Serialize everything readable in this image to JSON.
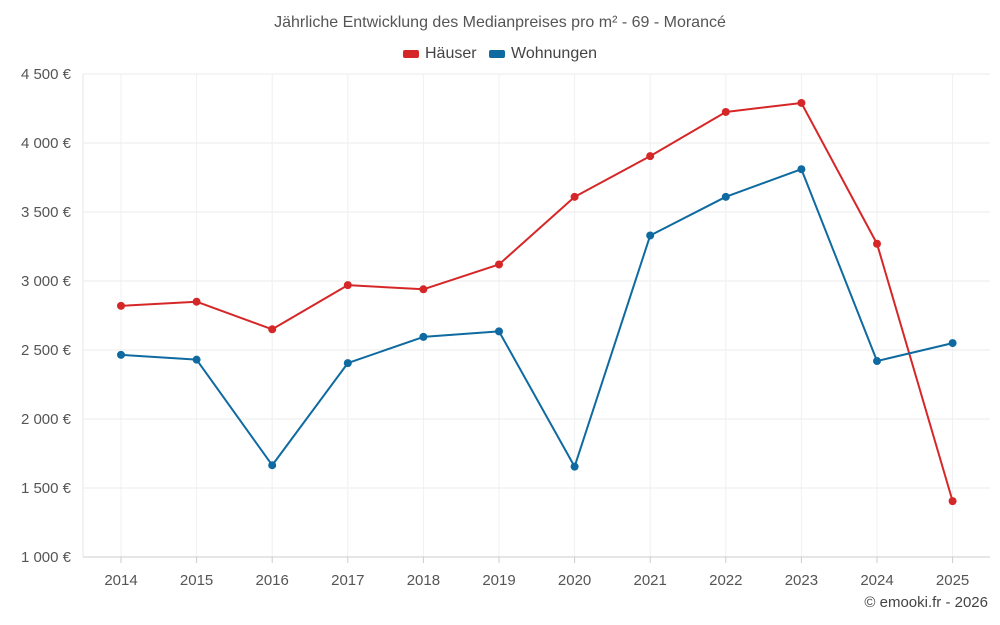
{
  "chart_data": {
    "type": "line",
    "title": "Jährliche Entwicklung des Medianpreises pro m² - 69 - Morancé",
    "categories": [
      "2014",
      "2015",
      "2016",
      "2017",
      "2018",
      "2019",
      "2020",
      "2021",
      "2022",
      "2023",
      "2024",
      "2025"
    ],
    "series": [
      {
        "name": "Häuser",
        "color": "#d62728",
        "values": [
          2820,
          2850,
          2650,
          2970,
          2940,
          3120,
          3610,
          3905,
          4225,
          4290,
          3270,
          1405
        ]
      },
      {
        "name": "Wohnungen",
        "color": "#0e6aa0",
        "values": [
          2465,
          2430,
          1665,
          2405,
          2595,
          2635,
          1655,
          3330,
          3610,
          3810,
          2420,
          2550
        ]
      }
    ],
    "ylim": [
      1000,
      4500
    ],
    "yticks": [
      1000,
      1500,
      2000,
      2500,
      3000,
      3500,
      4000,
      4500
    ],
    "ytick_labels": [
      "1 000 €",
      "1 500 €",
      "2 000 €",
      "2 500 €",
      "3 000 €",
      "3 500 €",
      "4 000 €",
      "4 500 €"
    ],
    "xlabel": "",
    "ylabel": "",
    "grid": true,
    "legend_position": "top-center"
  },
  "credit": "© emooki.fr - 2026"
}
